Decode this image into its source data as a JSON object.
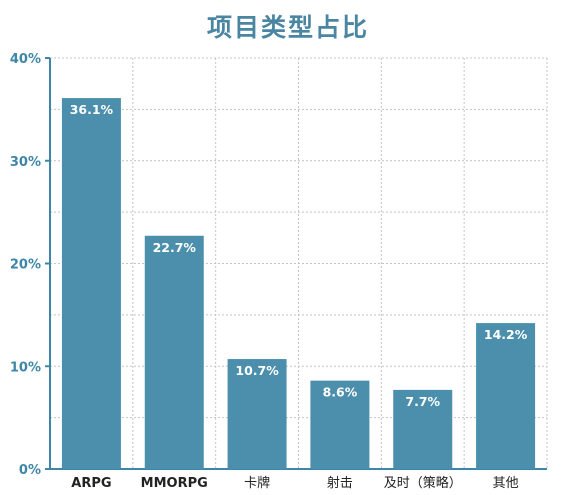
{
  "chart_data": {
    "type": "bar",
    "title": "项目类型占比",
    "categories": [
      "ARPG",
      "MMORPG",
      "卡牌",
      "射击",
      "及时（策略）",
      "其他"
    ],
    "values": [
      36.1,
      22.7,
      10.7,
      8.6,
      7.7,
      14.2
    ],
    "value_labels": [
      "36.1%",
      "22.7%",
      "10.7%",
      "8.6%",
      "7.7%",
      "14.2%"
    ],
    "ylim": [
      0,
      40
    ],
    "yticks": [
      0,
      10,
      20,
      30,
      40
    ],
    "ytick_labels": [
      "0%",
      "10%",
      "20%",
      "30%",
      "40%"
    ],
    "xlabel": "",
    "ylabel": "",
    "grid": true,
    "bar_color": "#4b8fad",
    "axis_color": "#3e86a8"
  }
}
